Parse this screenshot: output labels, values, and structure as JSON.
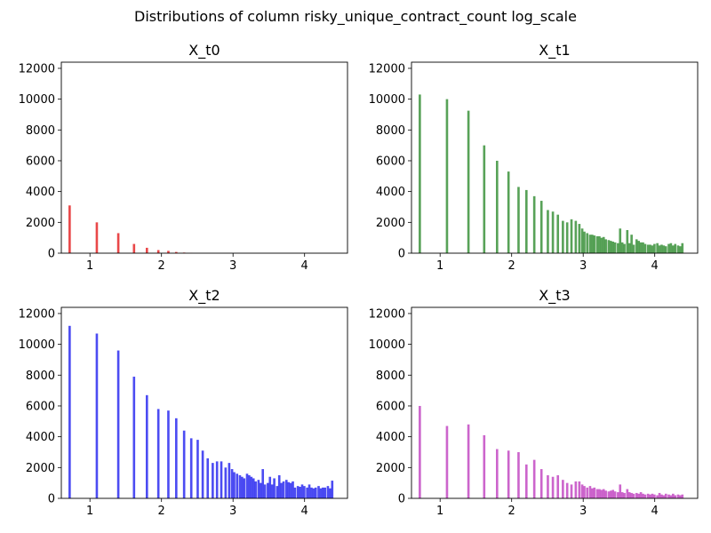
{
  "figure": {
    "suptitle": "Distributions of column risky_unique_contract_count log_scale"
  },
  "chart_data": [
    {
      "type": "bar",
      "title": "X_t0",
      "color": "#e41a1c",
      "xlim": [
        0.6,
        4.6
      ],
      "ylim": [
        0,
        12400
      ],
      "xticks": [
        1,
        2,
        3,
        4
      ],
      "yticks": [
        0,
        2000,
        4000,
        6000,
        8000,
        10000,
        12000
      ],
      "bin_width": 0.0325,
      "x": [
        0.7,
        1.08,
        1.38,
        1.6,
        1.78,
        1.94,
        2.08,
        2.19,
        2.3,
        2.4
      ],
      "values": [
        3100,
        2000,
        1300,
        600,
        350,
        200,
        150,
        80,
        40,
        20
      ]
    },
    {
      "type": "bar",
      "title": "X_t1",
      "color": "#2e8b2e",
      "xlim": [
        0.6,
        4.6
      ],
      "ylim": [
        0,
        12400
      ],
      "xticks": [
        1,
        2,
        3,
        4
      ],
      "yticks": [
        0,
        2000,
        4000,
        6000,
        8000,
        10000,
        12000
      ],
      "bin_width": 0.0325,
      "x": [
        0.7,
        1.08,
        1.38,
        1.6,
        1.78,
        1.94,
        2.08,
        2.19,
        2.3,
        2.4,
        2.49,
        2.56,
        2.63,
        2.7,
        2.76,
        2.82,
        2.88,
        2.93,
        2.97,
        3.0,
        3.04,
        3.08,
        3.11,
        3.14,
        3.18,
        3.21,
        3.24,
        3.27,
        3.3,
        3.34,
        3.37,
        3.4,
        3.43,
        3.47,
        3.5,
        3.53,
        3.56,
        3.6,
        3.63,
        3.66,
        3.69,
        3.73,
        3.76,
        3.79,
        3.82,
        3.85,
        3.89,
        3.92,
        3.95,
        3.98,
        4.02,
        4.05,
        4.08,
        4.11,
        4.14,
        4.18,
        4.21,
        4.24,
        4.27,
        4.31,
        4.34,
        4.37
      ],
      "values": [
        10300,
        10000,
        9250,
        7000,
        6000,
        5300,
        4300,
        4100,
        3700,
        3400,
        2800,
        2700,
        2500,
        2100,
        2000,
        2200,
        2100,
        1900,
        1600,
        1400,
        1300,
        1200,
        1200,
        1150,
        1100,
        1100,
        1000,
        1050,
        900,
        850,
        800,
        750,
        700,
        650,
        1600,
        700,
        600,
        1500,
        650,
        1200,
        550,
        900,
        800,
        700,
        700,
        600,
        550,
        550,
        500,
        600,
        650,
        500,
        550,
        500,
        450,
        600,
        650,
        500,
        600,
        500,
        450,
        650
      ]
    },
    {
      "type": "bar",
      "title": "X_t2",
      "color": "#1f1fef",
      "xlim": [
        0.6,
        4.6
      ],
      "ylim": [
        0,
        12400
      ],
      "xticks": [
        1,
        2,
        3,
        4
      ],
      "yticks": [
        0,
        2000,
        4000,
        6000,
        8000,
        10000,
        12000
      ],
      "bin_width": 0.0325,
      "x": [
        0.7,
        1.08,
        1.38,
        1.6,
        1.78,
        1.94,
        2.08,
        2.19,
        2.3,
        2.4,
        2.49,
        2.56,
        2.63,
        2.7,
        2.76,
        2.82,
        2.88,
        2.93,
        2.97,
        3.0,
        3.04,
        3.08,
        3.11,
        3.14,
        3.18,
        3.21,
        3.24,
        3.27,
        3.3,
        3.34,
        3.37,
        3.4,
        3.43,
        3.47,
        3.5,
        3.53,
        3.56,
        3.6,
        3.63,
        3.66,
        3.69,
        3.73,
        3.76,
        3.79,
        3.82,
        3.85,
        3.89,
        3.92,
        3.95,
        3.98,
        4.02,
        4.05,
        4.08,
        4.11,
        4.14,
        4.18,
        4.21,
        4.24,
        4.27,
        4.31,
        4.34,
        4.37
      ],
      "values": [
        11200,
        10700,
        9600,
        7900,
        6700,
        5800,
        5700,
        5200,
        4400,
        3900,
        3800,
        3100,
        2600,
        2300,
        2400,
        2400,
        2000,
        2300,
        1900,
        1700,
        1600,
        1500,
        1400,
        1300,
        1600,
        1500,
        1400,
        1300,
        1100,
        1200,
        1000,
        1900,
        900,
        1000,
        1400,
        900,
        1300,
        800,
        1500,
        1000,
        1100,
        1200,
        1050,
        1000,
        1100,
        700,
        800,
        750,
        900,
        800,
        700,
        900,
        700,
        650,
        700,
        800,
        650,
        700,
        700,
        800,
        650,
        1150
      ]
    },
    {
      "type": "bar",
      "title": "X_t3",
      "color": "#bf3fbf",
      "xlim": [
        0.6,
        4.6
      ],
      "ylim": [
        0,
        12400
      ],
      "xticks": [
        1,
        2,
        3,
        4
      ],
      "yticks": [
        0,
        2000,
        4000,
        6000,
        8000,
        10000,
        12000
      ],
      "bin_width": 0.0325,
      "x": [
        0.7,
        1.08,
        1.38,
        1.6,
        1.78,
        1.94,
        2.08,
        2.19,
        2.3,
        2.4,
        2.49,
        2.56,
        2.63,
        2.7,
        2.76,
        2.82,
        2.88,
        2.93,
        2.97,
        3.0,
        3.04,
        3.08,
        3.11,
        3.14,
        3.18,
        3.21,
        3.24,
        3.27,
        3.3,
        3.34,
        3.37,
        3.4,
        3.43,
        3.47,
        3.5,
        3.53,
        3.56,
        3.6,
        3.63,
        3.66,
        3.69,
        3.73,
        3.76,
        3.79,
        3.82,
        3.85,
        3.89,
        3.92,
        3.95,
        3.98,
        4.02,
        4.05,
        4.08,
        4.11,
        4.14,
        4.18,
        4.21,
        4.24,
        4.27,
        4.31,
        4.34,
        4.37
      ],
      "values": [
        6000,
        4700,
        4800,
        4100,
        3200,
        3100,
        3000,
        2200,
        2500,
        1900,
        1500,
        1400,
        1500,
        1200,
        1000,
        900,
        1100,
        1100,
        900,
        800,
        700,
        800,
        650,
        700,
        600,
        600,
        550,
        600,
        500,
        450,
        500,
        550,
        450,
        400,
        900,
        400,
        350,
        600,
        400,
        350,
        300,
        350,
        300,
        400,
        300,
        250,
        300,
        250,
        300,
        250,
        200,
        350,
        250,
        200,
        300,
        250,
        200,
        300,
        200,
        250,
        200,
        250
      ]
    }
  ]
}
